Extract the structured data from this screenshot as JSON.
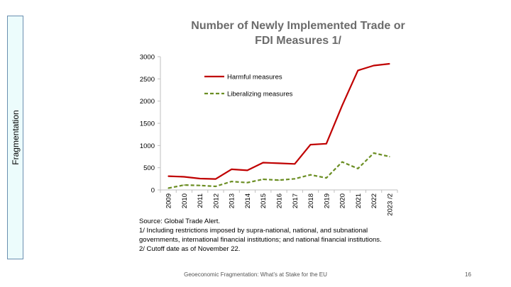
{
  "slide": {
    "side_label": "Fragmentation",
    "footer": "Geoeconomic Fragmentation: What’s at Stake for the EU",
    "page_number": "16"
  },
  "chart_data": {
    "type": "line",
    "title_lines": [
      "Number of Newly Implemented Trade or",
      "FDI Measures 1/"
    ],
    "categories": [
      "2009",
      "2010",
      "2011",
      "2012",
      "2013",
      "2014",
      "2015",
      "2016",
      "2017",
      "2018",
      "2019",
      "2020",
      "2021",
      "2022",
      "2023 /2"
    ],
    "series": [
      {
        "name": "Harmful measures",
        "color": "#c00000",
        "dash": "solid",
        "values": [
          310,
          295,
          255,
          245,
          465,
          440,
          615,
          600,
          585,
          1020,
          1040,
          1900,
          2690,
          2800,
          2840
        ]
      },
      {
        "name": "Liberalizing measures",
        "color": "#6b8e23",
        "dash": "dashed",
        "values": [
          40,
          110,
          100,
          80,
          190,
          165,
          240,
          220,
          250,
          340,
          270,
          630,
          480,
          830,
          750
        ]
      }
    ],
    "ylim": [
      0,
      3000
    ],
    "yticks": [
      0,
      500,
      1000,
      1500,
      2000,
      2500,
      3000
    ],
    "grid": false,
    "legend_position": "top-left"
  },
  "notes": [
    "Source: Global Trade Alert.",
    "1/ Including restrictions imposed by supra-national, national, and subnational",
    "governments, international financial institutions; and national financial institutions.",
    "2/ Cutoff date as of November 22."
  ]
}
